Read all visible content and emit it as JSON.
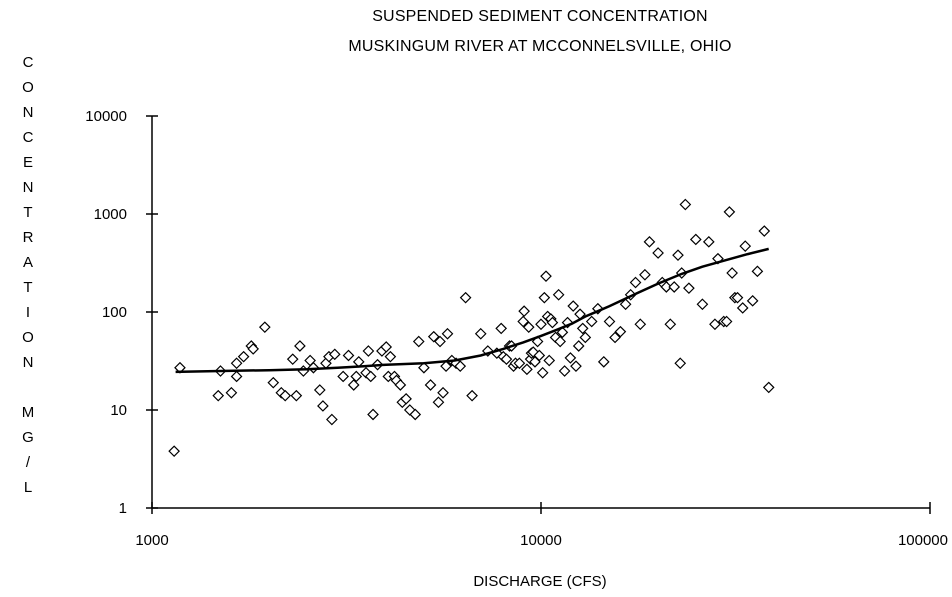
{
  "chart_data": {
    "type": "scatter",
    "title": "SUSPENDED SEDIMENT CONCENTRATION",
    "subtitle": "MUSKINGUM RIVER AT MCCONNELSVILLE, OHIO",
    "xlabel": "DISCHARGE (CFS)",
    "ylabel": "CONCENTRATION MG/L",
    "ylabel_chars": [
      "C",
      "O",
      "N",
      "C",
      "E",
      "N",
      "T",
      "R",
      "A",
      "T",
      "I",
      "O",
      "N",
      "",
      "M",
      "G",
      "/",
      "L"
    ],
    "x_scale": "log",
    "y_scale": "log",
    "xlim": [
      1000,
      100000
    ],
    "ylim": [
      1,
      10000
    ],
    "x_ticks": [
      1000,
      10000,
      100000
    ],
    "x_tick_labels": [
      "1000",
      "10000",
      "100000"
    ],
    "y_ticks": [
      1,
      10,
      100,
      1000,
      10000
    ],
    "y_tick_labels": [
      "1",
      "10",
      "100",
      "1000",
      "10000"
    ],
    "grid": false,
    "legend": "none",
    "series": [
      {
        "marker": "diamond",
        "points": [
          [
            1140,
            3.8
          ],
          [
            1180,
            27
          ],
          [
            1480,
            14
          ],
          [
            1500,
            25
          ],
          [
            1600,
            15
          ],
          [
            1650,
            22
          ],
          [
            1650,
            30
          ],
          [
            1720,
            35
          ],
          [
            1800,
            45
          ],
          [
            1820,
            42
          ],
          [
            1950,
            70
          ],
          [
            2050,
            19
          ],
          [
            2150,
            15
          ],
          [
            2200,
            14
          ],
          [
            2300,
            33
          ],
          [
            2350,
            14
          ],
          [
            2400,
            45
          ],
          [
            2450,
            25
          ],
          [
            2550,
            32
          ],
          [
            2600,
            27
          ],
          [
            2700,
            16
          ],
          [
            2750,
            11
          ],
          [
            2800,
            30
          ],
          [
            2850,
            35
          ],
          [
            2900,
            8
          ],
          [
            2950,
            37
          ],
          [
            3100,
            22
          ],
          [
            3200,
            36
          ],
          [
            3350,
            22
          ],
          [
            3300,
            18
          ],
          [
            3400,
            31
          ],
          [
            3550,
            24
          ],
          [
            3600,
            40
          ],
          [
            3650,
            22
          ],
          [
            3700,
            9
          ],
          [
            3800,
            29
          ],
          [
            3900,
            40
          ],
          [
            4000,
            44
          ],
          [
            4050,
            22
          ],
          [
            4100,
            35
          ],
          [
            4200,
            22
          ],
          [
            4250,
            20
          ],
          [
            4350,
            18
          ],
          [
            4400,
            12
          ],
          [
            4500,
            13
          ],
          [
            4600,
            10
          ],
          [
            4750,
            9
          ],
          [
            4850,
            50
          ],
          [
            5000,
            27
          ],
          [
            5200,
            18
          ],
          [
            5300,
            56
          ],
          [
            5450,
            12
          ],
          [
            5500,
            50
          ],
          [
            5600,
            15
          ],
          [
            5700,
            28
          ],
          [
            5750,
            60
          ],
          [
            5900,
            32
          ],
          [
            6050,
            30
          ],
          [
            6200,
            28
          ],
          [
            6400,
            140
          ],
          [
            6650,
            14
          ],
          [
            7000,
            60
          ],
          [
            7300,
            40
          ],
          [
            7700,
            38
          ],
          [
            7900,
            68
          ],
          [
            8000,
            35
          ],
          [
            8150,
            33
          ],
          [
            8300,
            45
          ],
          [
            8400,
            45
          ],
          [
            8500,
            28
          ],
          [
            8600,
            30
          ],
          [
            8800,
            30
          ],
          [
            9000,
            80
          ],
          [
            9050,
            102
          ],
          [
            9200,
            26
          ],
          [
            9300,
            70
          ],
          [
            9400,
            33
          ],
          [
            9450,
            38
          ],
          [
            9550,
            39
          ],
          [
            9650,
            31
          ],
          [
            9800,
            50
          ],
          [
            9900,
            36
          ],
          [
            10000,
            75
          ],
          [
            10100,
            24
          ],
          [
            10200,
            140
          ],
          [
            10300,
            232
          ],
          [
            10400,
            90
          ],
          [
            10500,
            32
          ],
          [
            10600,
            85
          ],
          [
            10700,
            78
          ],
          [
            10900,
            55
          ],
          [
            11100,
            150
          ],
          [
            11200,
            50
          ],
          [
            11350,
            62
          ],
          [
            11500,
            25
          ],
          [
            11700,
            78
          ],
          [
            11900,
            34
          ],
          [
            12100,
            115
          ],
          [
            12300,
            28
          ],
          [
            12500,
            45
          ],
          [
            12600,
            95
          ],
          [
            12800,
            68
          ],
          [
            13000,
            55
          ],
          [
            13500,
            80
          ],
          [
            14000,
            108
          ],
          [
            14500,
            31
          ],
          [
            15000,
            80
          ],
          [
            15500,
            55
          ],
          [
            16000,
            63
          ],
          [
            16500,
            120
          ],
          [
            17000,
            150
          ],
          [
            17500,
            200
          ],
          [
            18000,
            75
          ],
          [
            18500,
            240
          ],
          [
            19000,
            520
          ],
          [
            20000,
            400
          ],
          [
            20500,
            200
          ],
          [
            21000,
            180
          ],
          [
            21500,
            75
          ],
          [
            22000,
            180
          ],
          [
            22500,
            380
          ],
          [
            22800,
            30
          ],
          [
            23000,
            250
          ],
          [
            23500,
            1250
          ],
          [
            24000,
            175
          ],
          [
            25000,
            550
          ],
          [
            26000,
            120
          ],
          [
            27000,
            520
          ],
          [
            28000,
            75
          ],
          [
            28500,
            350
          ],
          [
            29500,
            80
          ],
          [
            30000,
            80
          ],
          [
            30500,
            1050
          ],
          [
            31000,
            250
          ],
          [
            31500,
            140
          ],
          [
            32000,
            140
          ],
          [
            33000,
            110
          ],
          [
            33500,
            470
          ],
          [
            35000,
            130
          ],
          [
            36000,
            260
          ],
          [
            37500,
            670
          ],
          [
            38500,
            17
          ]
        ]
      },
      {
        "type": "line",
        "points": [
          [
            1150,
            24.5
          ],
          [
            1500,
            25
          ],
          [
            2000,
            25.5
          ],
          [
            2500,
            26
          ],
          [
            3000,
            27
          ],
          [
            3500,
            28
          ],
          [
            4000,
            29
          ],
          [
            5000,
            30
          ],
          [
            6000,
            32
          ],
          [
            7000,
            36
          ],
          [
            8000,
            42
          ],
          [
            9000,
            49
          ],
          [
            10000,
            57
          ],
          [
            11000,
            66
          ],
          [
            12000,
            76
          ],
          [
            13000,
            90
          ],
          [
            14000,
            102
          ],
          [
            15000,
            115
          ],
          [
            17000,
            145
          ],
          [
            20000,
            195
          ],
          [
            23000,
            245
          ],
          [
            26000,
            290
          ],
          [
            30000,
            340
          ],
          [
            34000,
            390
          ],
          [
            38500,
            440
          ]
        ]
      }
    ]
  }
}
